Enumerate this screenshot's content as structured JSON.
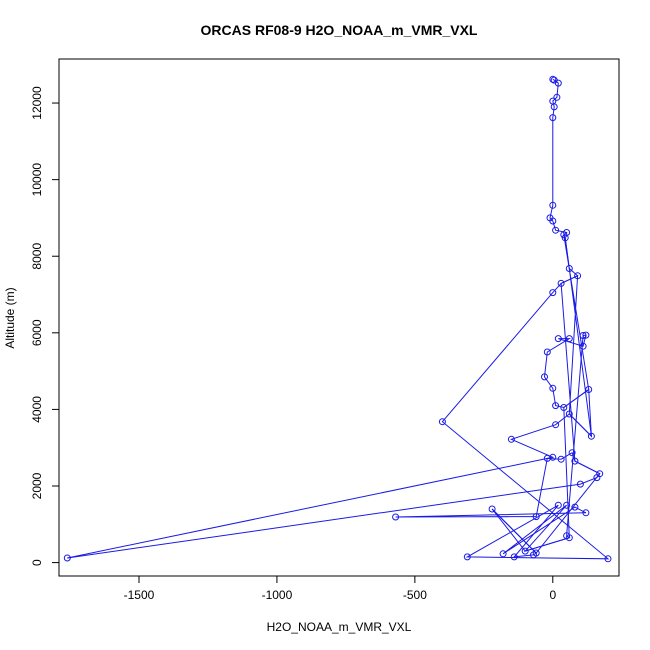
{
  "chart_data": {
    "type": "scatter",
    "title": "ORCAS RF08-9 H2O_NOAA_m_VMR_VXL",
    "xlabel": "H2O_NOAA_m_VMR_VXL",
    "ylabel": "Altitude (m)",
    "xlim": [
      -1790,
      240
    ],
    "ylim": [
      -350,
      13150
    ],
    "x_ticks": [
      -1500,
      -1000,
      -500,
      0
    ],
    "x_tick_labels": [
      "-1500",
      "-1000",
      "-500",
      "0"
    ],
    "y_ticks": [
      0,
      2000,
      4000,
      6000,
      8000,
      10000,
      12000
    ],
    "y_tick_labels": [
      "0",
      "2000",
      "4000",
      "6000",
      "8000",
      "10000",
      "12000"
    ],
    "connected": true,
    "grid": false,
    "legend": "none",
    "series_color": "#1a1ae6",
    "points": [
      {
        "x": 0,
        "y": 12620
      },
      {
        "x": 5,
        "y": 12600
      },
      {
        "x": 20,
        "y": 12520
      },
      {
        "x": 15,
        "y": 12150
      },
      {
        "x": 0,
        "y": 12050
      },
      {
        "x": 5,
        "y": 11900
      },
      {
        "x": 0,
        "y": 11620
      },
      {
        "x": 0,
        "y": 9330
      },
      {
        "x": -10,
        "y": 9000
      },
      {
        "x": 0,
        "y": 8920
      },
      {
        "x": 10,
        "y": 8680
      },
      {
        "x": 50,
        "y": 8620
      },
      {
        "x": 40,
        "y": 8560
      },
      {
        "x": 45,
        "y": 8480
      },
      {
        "x": 60,
        "y": 7680
      },
      {
        "x": 90,
        "y": 7490
      },
      {
        "x": 30,
        "y": 7290
      },
      {
        "x": 0,
        "y": 7050
      },
      {
        "x": -400,
        "y": 3680
      },
      {
        "x": 200,
        "y": 100
      },
      {
        "x": -310,
        "y": 150
      },
      {
        "x": 20,
        "y": 1500
      },
      {
        "x": -140,
        "y": 150
      },
      {
        "x": -70,
        "y": 200
      },
      {
        "x": -60,
        "y": 250
      },
      {
        "x": -220,
        "y": 1400
      },
      {
        "x": -100,
        "y": 300
      },
      {
        "x": 60,
        "y": 650
      },
      {
        "x": 50,
        "y": 700
      },
      {
        "x": 110,
        "y": 5930
      },
      {
        "x": 120,
        "y": 5940
      },
      {
        "x": 110,
        "y": 5650
      },
      {
        "x": 20,
        "y": 5850
      },
      {
        "x": 60,
        "y": 5850
      },
      {
        "x": -20,
        "y": 5500
      },
      {
        "x": -30,
        "y": 4850
      },
      {
        "x": 0,
        "y": 4550
      },
      {
        "x": 10,
        "y": 4100
      },
      {
        "x": 40,
        "y": 4050
      },
      {
        "x": 130,
        "y": 4520
      },
      {
        "x": 140,
        "y": 3300
      },
      {
        "x": 60,
        "y": 3880
      },
      {
        "x": 10,
        "y": 3600
      },
      {
        "x": -150,
        "y": 3220
      },
      {
        "x": 0,
        "y": 2750
      },
      {
        "x": -20,
        "y": 2720
      },
      {
        "x": 30,
        "y": 2700
      },
      {
        "x": 70,
        "y": 2870
      },
      {
        "x": 80,
        "y": 2650
      },
      {
        "x": 170,
        "y": 2320
      },
      {
        "x": 160,
        "y": 2220
      },
      {
        "x": 100,
        "y": 2050
      },
      {
        "x": -1760,
        "y": 120
      },
      {
        "x": -60,
        "y": 1200
      },
      {
        "x": -570,
        "y": 1190
      },
      {
        "x": 120,
        "y": 1300
      },
      {
        "x": 80,
        "y": 1450
      },
      {
        "x": -180,
        "y": 230
      },
      {
        "x": 50,
        "y": 1500
      }
    ],
    "path_order": [
      [
        0,
        1,
        2,
        3,
        4,
        5,
        6,
        7,
        8,
        9,
        10,
        11,
        12,
        13,
        14,
        15,
        16,
        17,
        18,
        19,
        20,
        21,
        22,
        23,
        24,
        25,
        26,
        27,
        28
      ],
      [
        28,
        29,
        30,
        31,
        32,
        33,
        34,
        35,
        36,
        37,
        38,
        39,
        40,
        41,
        42,
        43,
        44,
        45,
        46,
        47,
        48,
        49,
        50,
        51,
        52
      ],
      [
        52,
        44,
        45,
        53,
        54,
        55,
        56,
        57,
        58,
        26,
        27,
        38,
        39,
        12,
        13,
        40,
        41,
        15,
        16,
        48,
        49,
        24,
        25
      ]
    ]
  }
}
